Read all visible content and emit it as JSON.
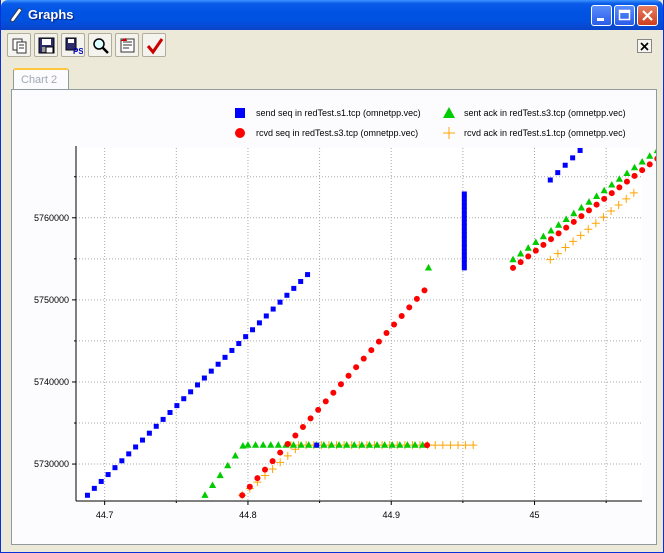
{
  "window": {
    "title": "Graphs"
  },
  "tabs": [
    {
      "label": "Chart 2"
    }
  ],
  "toolbar": {
    "buttons": [
      {
        "name": "copy-icon"
      },
      {
        "name": "save-image-icon"
      },
      {
        "name": "export-ps-icon",
        "label": "PS"
      },
      {
        "name": "zoom-icon"
      },
      {
        "name": "properties-icon"
      },
      {
        "name": "apply-check-icon"
      }
    ]
  },
  "chart_data": {
    "type": "scatter",
    "title": "",
    "xlabel": "",
    "ylabel": "",
    "xlim": [
      44.68,
      45.075
    ],
    "ylim": [
      5725500,
      5768500
    ],
    "xticks": [
      {
        "value": 44.7,
        "label": "44.7"
      },
      {
        "value": 44.8,
        "label": "44.8"
      },
      {
        "value": 44.9,
        "label": "44.9"
      },
      {
        "value": 45.0,
        "label": "45"
      }
    ],
    "yticks": [
      {
        "value": 5730000,
        "label": "5730000"
      },
      {
        "value": 5740000,
        "label": "5740000"
      },
      {
        "value": 5750000,
        "label": "5750000"
      },
      {
        "value": 5760000,
        "label": "5760000"
      }
    ],
    "grid": true,
    "legend_position": "top",
    "series": [
      {
        "name": "send seq in redTest.s1.tcp (omnetpp.vec)",
        "color": "#0000ff",
        "marker": "square",
        "segments": [
          {
            "x_start": 44.688,
            "x_step": 0.0048,
            "y_start": 5726200,
            "y_step": 840,
            "count": 33
          },
          {
            "x_start": 44.848,
            "x_step": 0,
            "y_start": 5732300,
            "y_step": 0,
            "count": 1
          },
          {
            "x_start": 44.951,
            "x_step": 0,
            "y_start": 5753900,
            "y_step": 500,
            "count": 19
          },
          {
            "x_start": 45.011,
            "x_step": 0.0052,
            "y_start": 5764600,
            "y_step": 900,
            "count": 5
          }
        ]
      },
      {
        "name": "rcvd seq in redTest.s3.tcp (omnetpp.vec)",
        "color": "#ff0000",
        "marker": "circle",
        "segments": [
          {
            "x_start": 44.796,
            "x_step": 0.0053,
            "y_start": 5726200,
            "y_step": 1040,
            "count": 25
          },
          {
            "x_start": 44.925,
            "x_step": 0,
            "y_start": 5732300,
            "y_step": 0,
            "count": 1
          },
          {
            "x_start": 44.985,
            "x_step": 0.0053,
            "y_start": 5753900,
            "y_step": 700,
            "count": 23
          }
        ]
      },
      {
        "name": "sent ack in redTest.s3.tcp (omnetpp.vec)",
        "color": "#00cc00",
        "marker": "triangle",
        "segments": [
          {
            "x_start": 44.77,
            "x_step": 0.0053,
            "y_start": 5726200,
            "y_step": 1200,
            "count": 6
          },
          {
            "x_start": 44.8,
            "x_step": 0.0053,
            "y_start": 5732300,
            "y_step": 0,
            "count": 24
          },
          {
            "x_start": 44.926,
            "x_step": 0,
            "y_start": 5753900,
            "y_step": 0,
            "count": 1
          },
          {
            "x_start": 44.985,
            "x_step": 0.0053,
            "y_start": 5754900,
            "y_step": 700,
            "count": 22
          }
        ]
      },
      {
        "name": "rcvd ack in redTest.s1.tcp (omnetpp.vec)",
        "color": "#ffa500",
        "marker": "plus",
        "segments": [
          {
            "x_start": 44.796,
            "x_step": 0.0053,
            "y_start": 5726200,
            "y_step": 800,
            "count": 8
          },
          {
            "x_start": 44.83,
            "x_step": 0.0053,
            "y_start": 5732300,
            "y_step": 0,
            "count": 25
          },
          {
            "x_start": 45.011,
            "x_step": 0.0053,
            "y_start": 5754900,
            "y_step": 740,
            "count": 12
          }
        ]
      }
    ]
  }
}
